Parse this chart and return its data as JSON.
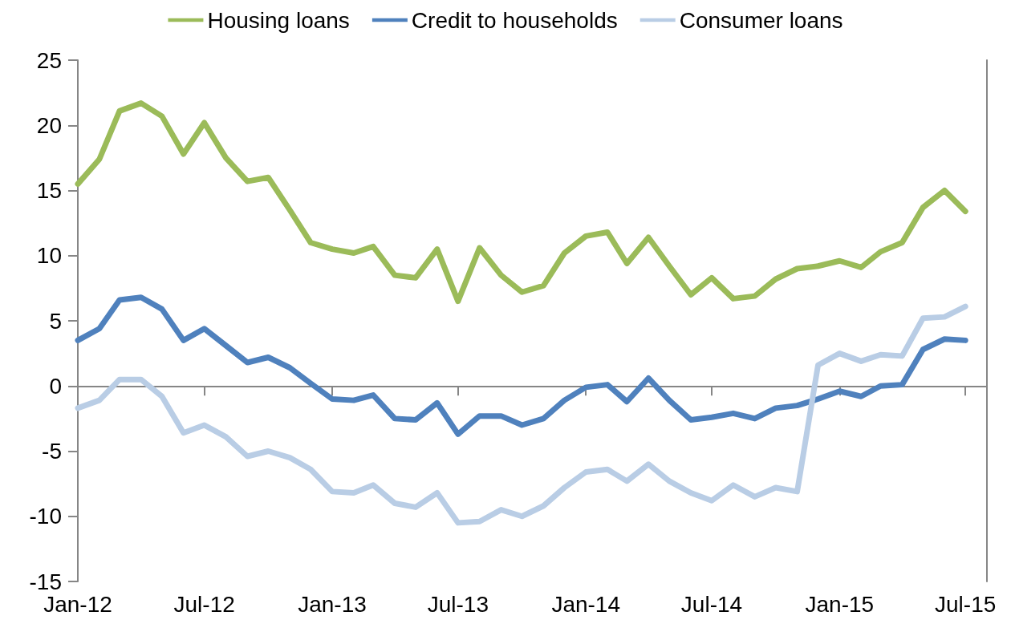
{
  "chart_data": {
    "type": "line",
    "x": [
      "2012-01",
      "2012-02",
      "2012-03",
      "2012-04",
      "2012-05",
      "2012-06",
      "2012-07",
      "2012-08",
      "2012-09",
      "2012-10",
      "2012-11",
      "2012-12",
      "2013-01",
      "2013-02",
      "2013-03",
      "2013-04",
      "2013-05",
      "2013-06",
      "2013-07",
      "2013-08",
      "2013-09",
      "2013-10",
      "2013-11",
      "2013-12",
      "2014-01",
      "2014-02",
      "2014-03",
      "2014-04",
      "2014-05",
      "2014-06",
      "2014-07",
      "2014-08",
      "2014-09",
      "2014-10",
      "2014-11",
      "2014-12",
      "2015-01",
      "2015-02",
      "2015-03",
      "2015-04",
      "2015-05",
      "2015-06",
      "2015-07"
    ],
    "series": [
      {
        "name": "Housing loans",
        "color": "#9bbb59",
        "values": [
          15.5,
          17.4,
          21.1,
          21.7,
          20.7,
          17.8,
          20.2,
          17.5,
          15.7,
          16.0,
          13.5,
          11.0,
          10.5,
          10.2,
          10.7,
          8.5,
          8.3,
          10.5,
          6.5,
          10.6,
          8.5,
          7.2,
          7.7,
          10.2,
          11.5,
          11.8,
          9.4,
          11.4,
          9.2,
          7.0,
          8.3,
          6.7,
          6.9,
          8.2,
          9.0,
          9.2,
          9.6,
          9.1,
          10.3,
          11.0,
          13.7,
          15.0,
          13.4
        ]
      },
      {
        "name": "Credit to households",
        "color": "#4f81bd",
        "values": [
          3.5,
          4.4,
          6.6,
          6.8,
          5.9,
          3.5,
          4.4,
          3.1,
          1.8,
          2.2,
          1.4,
          0.2,
          -1.0,
          -1.1,
          -0.7,
          -2.5,
          -2.6,
          -1.3,
          -3.7,
          -2.3,
          -2.3,
          -3.0,
          -2.5,
          -1.1,
          -0.1,
          0.1,
          -1.2,
          0.6,
          -1.1,
          -2.6,
          -2.4,
          -2.1,
          -2.5,
          -1.7,
          -1.5,
          -1.0,
          -0.4,
          -0.8,
          0.0,
          0.1,
          2.8,
          3.6,
          3.5
        ]
      },
      {
        "name": "Consumer loans",
        "color": "#b9cde5",
        "values": [
          -1.7,
          -1.1,
          0.5,
          0.5,
          -0.8,
          -3.6,
          -3.0,
          -3.9,
          -5.4,
          -5.0,
          -5.5,
          -6.4,
          -8.1,
          -8.2,
          -7.6,
          -9.0,
          -9.3,
          -8.2,
          -10.5,
          -10.4,
          -9.5,
          -10.0,
          -9.2,
          -7.8,
          -6.6,
          -6.4,
          -7.3,
          -6.0,
          -7.3,
          -8.2,
          -8.8,
          -7.6,
          -8.5,
          -7.8,
          -8.1,
          1.6,
          2.5,
          1.9,
          2.4,
          2.3,
          5.2,
          5.3,
          6.1
        ]
      }
    ],
    "xlim": [
      "2012-01",
      "2015-08"
    ],
    "xticks": [
      {
        "value": "2012-01",
        "label": "Jan-12"
      },
      {
        "value": "2012-07",
        "label": "Jul-12"
      },
      {
        "value": "2013-01",
        "label": "Jan-13"
      },
      {
        "value": "2013-07",
        "label": "Jul-13"
      },
      {
        "value": "2014-01",
        "label": "Jan-14"
      },
      {
        "value": "2014-07",
        "label": "Jul-14"
      },
      {
        "value": "2015-01",
        "label": "Jan-15"
      },
      {
        "value": "2015-07",
        "label": "Jul-15"
      }
    ],
    "ylim": [
      -15,
      25
    ],
    "yticks": [
      -15,
      -10,
      -5,
      0,
      5,
      10,
      15,
      20,
      25
    ],
    "legend": "top",
    "marker": "none",
    "line_style": "solid"
  }
}
